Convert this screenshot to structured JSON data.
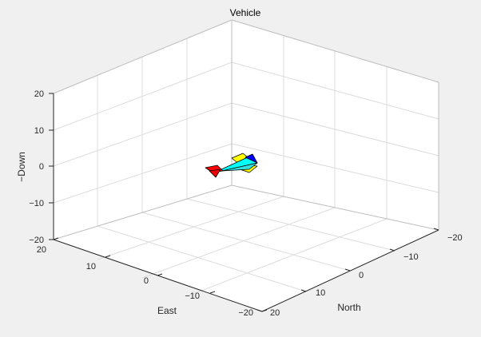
{
  "figure": {
    "title": "Vehicle",
    "background_color": "#f0f0f0",
    "axes_background_color": "#ffffff"
  },
  "axes": {
    "xlabel": "North",
    "ylabel": "East",
    "zlabel": "−Down",
    "x_ticks": [
      "−20",
      "−10",
      "0",
      "10",
      "20"
    ],
    "y_ticks": [
      "20",
      "10",
      "0",
      "−10",
      "−20"
    ],
    "z_ticks": [
      "20",
      "10",
      "0",
      "−10",
      "−20"
    ],
    "x_range": [
      -20,
      20
    ],
    "y_range": [
      -20,
      20
    ],
    "z_range": [
      -20,
      20
    ],
    "grid": true,
    "view": "3d"
  },
  "vehicle": {
    "name": "Vehicle",
    "fuselage_color": "#00ffff",
    "wing_color": "#ffff00",
    "tail_color": "#ff0000",
    "nose_color": "#0000ff"
  }
}
